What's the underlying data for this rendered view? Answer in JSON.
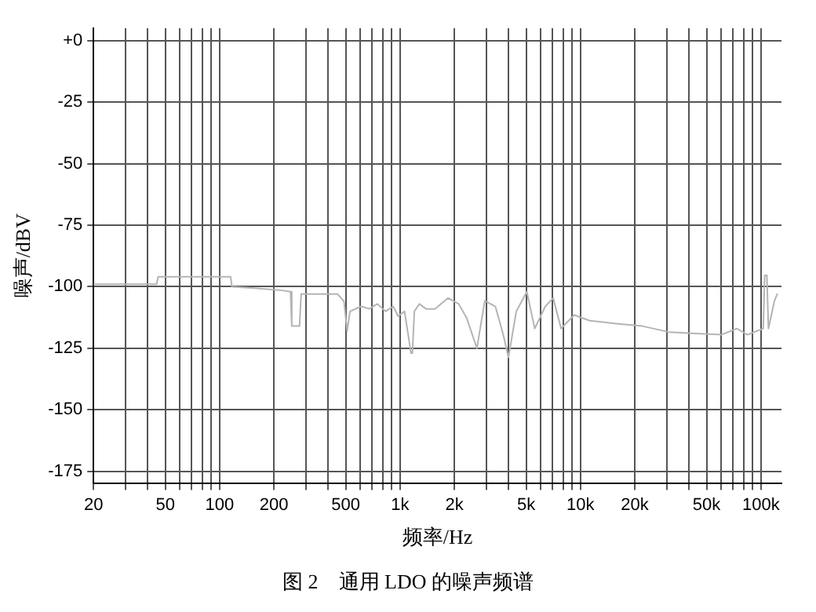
{
  "chart_data": {
    "type": "line",
    "xlabel": "频率/Hz",
    "ylabel": "噪声/dBV",
    "annotations": [
      "图 2　通用 LDO 的噪声频谱"
    ],
    "log": "x",
    "grid": true,
    "legend": false,
    "marker": "none",
    "line_style": "solid",
    "xlim": [
      20,
      130000
    ],
    "ylim": [
      -180,
      5
    ],
    "xticks": [
      20,
      {
        "value": 30,
        "label": null
      },
      {
        "value": 40,
        "label": null
      },
      50,
      {
        "value": 60,
        "label": null
      },
      {
        "value": 70,
        "label": null
      },
      {
        "value": 80,
        "label": null
      },
      {
        "value": 90,
        "label": null
      },
      100,
      200,
      {
        "value": 300,
        "label": null
      },
      {
        "value": 400,
        "label": null
      },
      500,
      {
        "value": 600,
        "label": null
      },
      {
        "value": 700,
        "label": null
      },
      {
        "value": 800,
        "label": null
      },
      {
        "value": 900,
        "label": null
      },
      {
        "value": 1000,
        "label": "1k"
      },
      {
        "value": 2000,
        "label": "2k"
      },
      {
        "value": 3000,
        "label": null
      },
      {
        "value": 4000,
        "label": null
      },
      {
        "value": 5000,
        "label": "5k"
      },
      {
        "value": 6000,
        "label": null
      },
      {
        "value": 7000,
        "label": null
      },
      {
        "value": 8000,
        "label": null
      },
      {
        "value": 9000,
        "label": null
      },
      {
        "value": 10000,
        "label": "10k"
      },
      {
        "value": 20000,
        "label": "20k"
      },
      {
        "value": 30000,
        "label": null
      },
      {
        "value": 40000,
        "label": null
      },
      {
        "value": 50000,
        "label": "50k"
      },
      {
        "value": 60000,
        "label": null
      },
      {
        "value": 70000,
        "label": null
      },
      {
        "value": 80000,
        "label": null
      },
      {
        "value": 90000,
        "label": null
      },
      {
        "value": 100000,
        "label": "100k"
      }
    ],
    "yticks": [
      {
        "value": 0,
        "label": "+0"
      },
      -25,
      -50,
      -75,
      -100,
      -125,
      -150,
      -175
    ],
    "series": [
      {
        "color": "#b4b4b4",
        "x": [
          20,
          44.7,
          45.6,
          115,
          117,
          150,
          183,
          222,
          247,
          251,
          277,
          283,
          451,
          489,
          509,
          516,
          528,
          608,
          675,
          748,
          830,
          916,
          975,
          1059,
          1150,
          1170,
          1200,
          1280,
          1392,
          1562,
          1846,
          2112,
          2336,
          2666,
          2948,
          3374,
          3731,
          3988,
          4050,
          4408,
          5042,
          5576,
          6382,
          7056,
          7804,
          9224,
          11276,
          15772,
          22028,
          30820,
          43120,
          60320,
          73600,
          84220,
          102980,
          105000,
          107900,
          110060,
          118600,
          123000
        ],
        "values": [
          -99,
          -99,
          -96,
          -96,
          -100,
          -100.5,
          -101,
          -101.5,
          -102,
          -116,
          -116,
          -103,
          -103,
          -106,
          -118,
          -118,
          -110,
          -108,
          -109,
          -107,
          -110,
          -108,
          -112,
          -110,
          -127,
          -127,
          -110,
          -107,
          -109,
          -109,
          -104.6,
          -107,
          -112.6,
          -125,
          -105.7,
          -108,
          -119.5,
          -128.7,
          -128.7,
          -110,
          -102,
          -117,
          -108,
          -104.6,
          -117,
          -111.5,
          -113.8,
          -115,
          -116,
          -118.4,
          -119,
          -119.5,
          -117,
          -119.5,
          -117,
          -95.4,
          -95.4,
          -117,
          -106,
          -103
        ]
      }
    ]
  }
}
